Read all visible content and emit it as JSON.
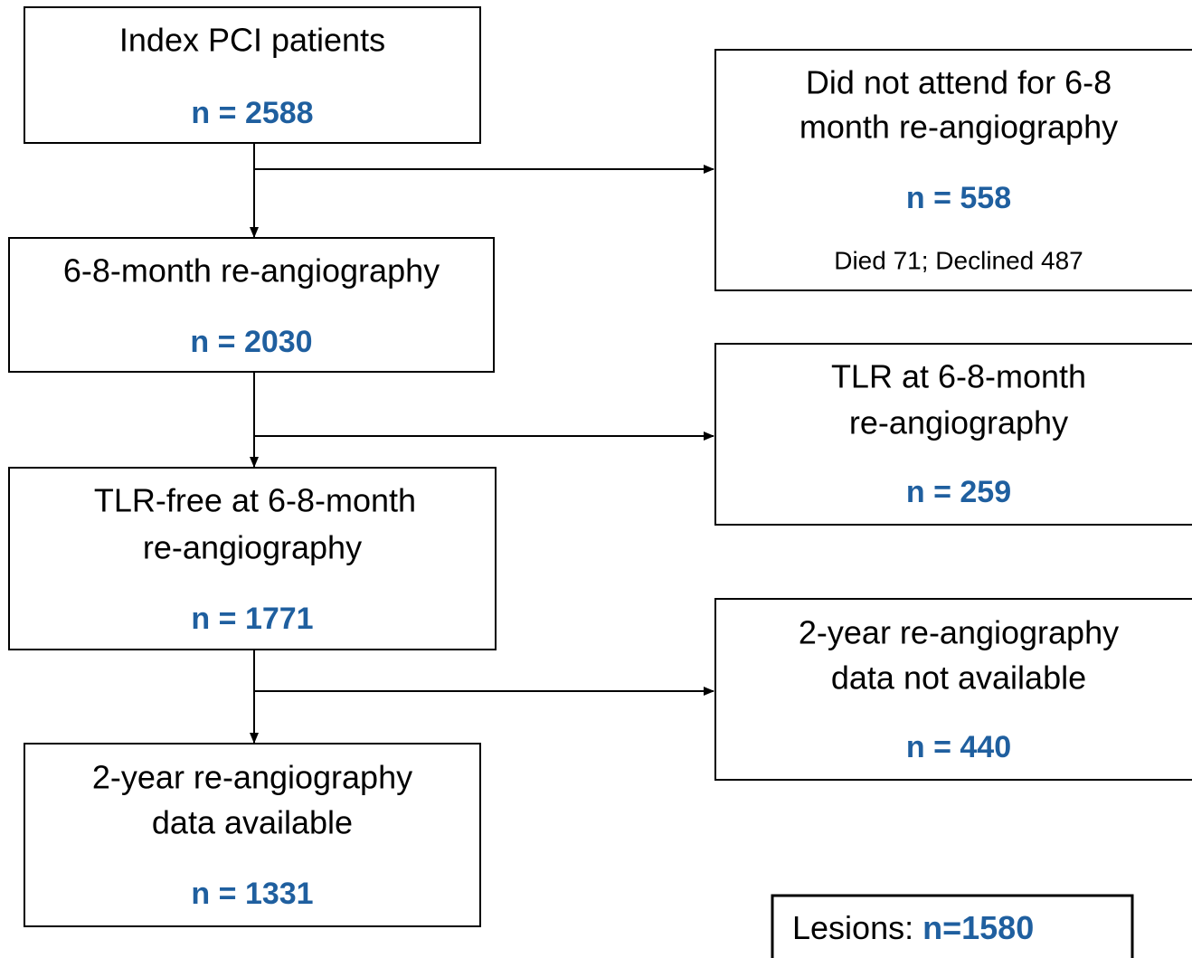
{
  "nodes": [
    {
      "lines": [
        "Index PCI patients"
      ],
      "n": "n = 2588"
    },
    {
      "lines": [
        "6-8-month re-angiography"
      ],
      "n": "n = 2030"
    },
    {
      "lines": [
        "TLR-free at 6-8-month",
        "re-angiography"
      ],
      "n": "n = 1771"
    },
    {
      "lines": [
        "2-year re-angiography",
        "data available"
      ],
      "n": "n = 1331"
    }
  ],
  "exclusions": [
    {
      "lines": [
        "Did not attend for 6-8",
        "month re-angiography"
      ],
      "n": "n = 558",
      "detail": "Died 71; Declined 487"
    },
    {
      "lines": [
        "TLR at 6-8-month",
        "re-angiography"
      ],
      "n": "n = 259"
    },
    {
      "lines": [
        "2-year re-angiography",
        "data not available"
      ],
      "n": "n = 440"
    }
  ],
  "lesions": {
    "label": "Lesions:",
    "n": "n=1580"
  }
}
